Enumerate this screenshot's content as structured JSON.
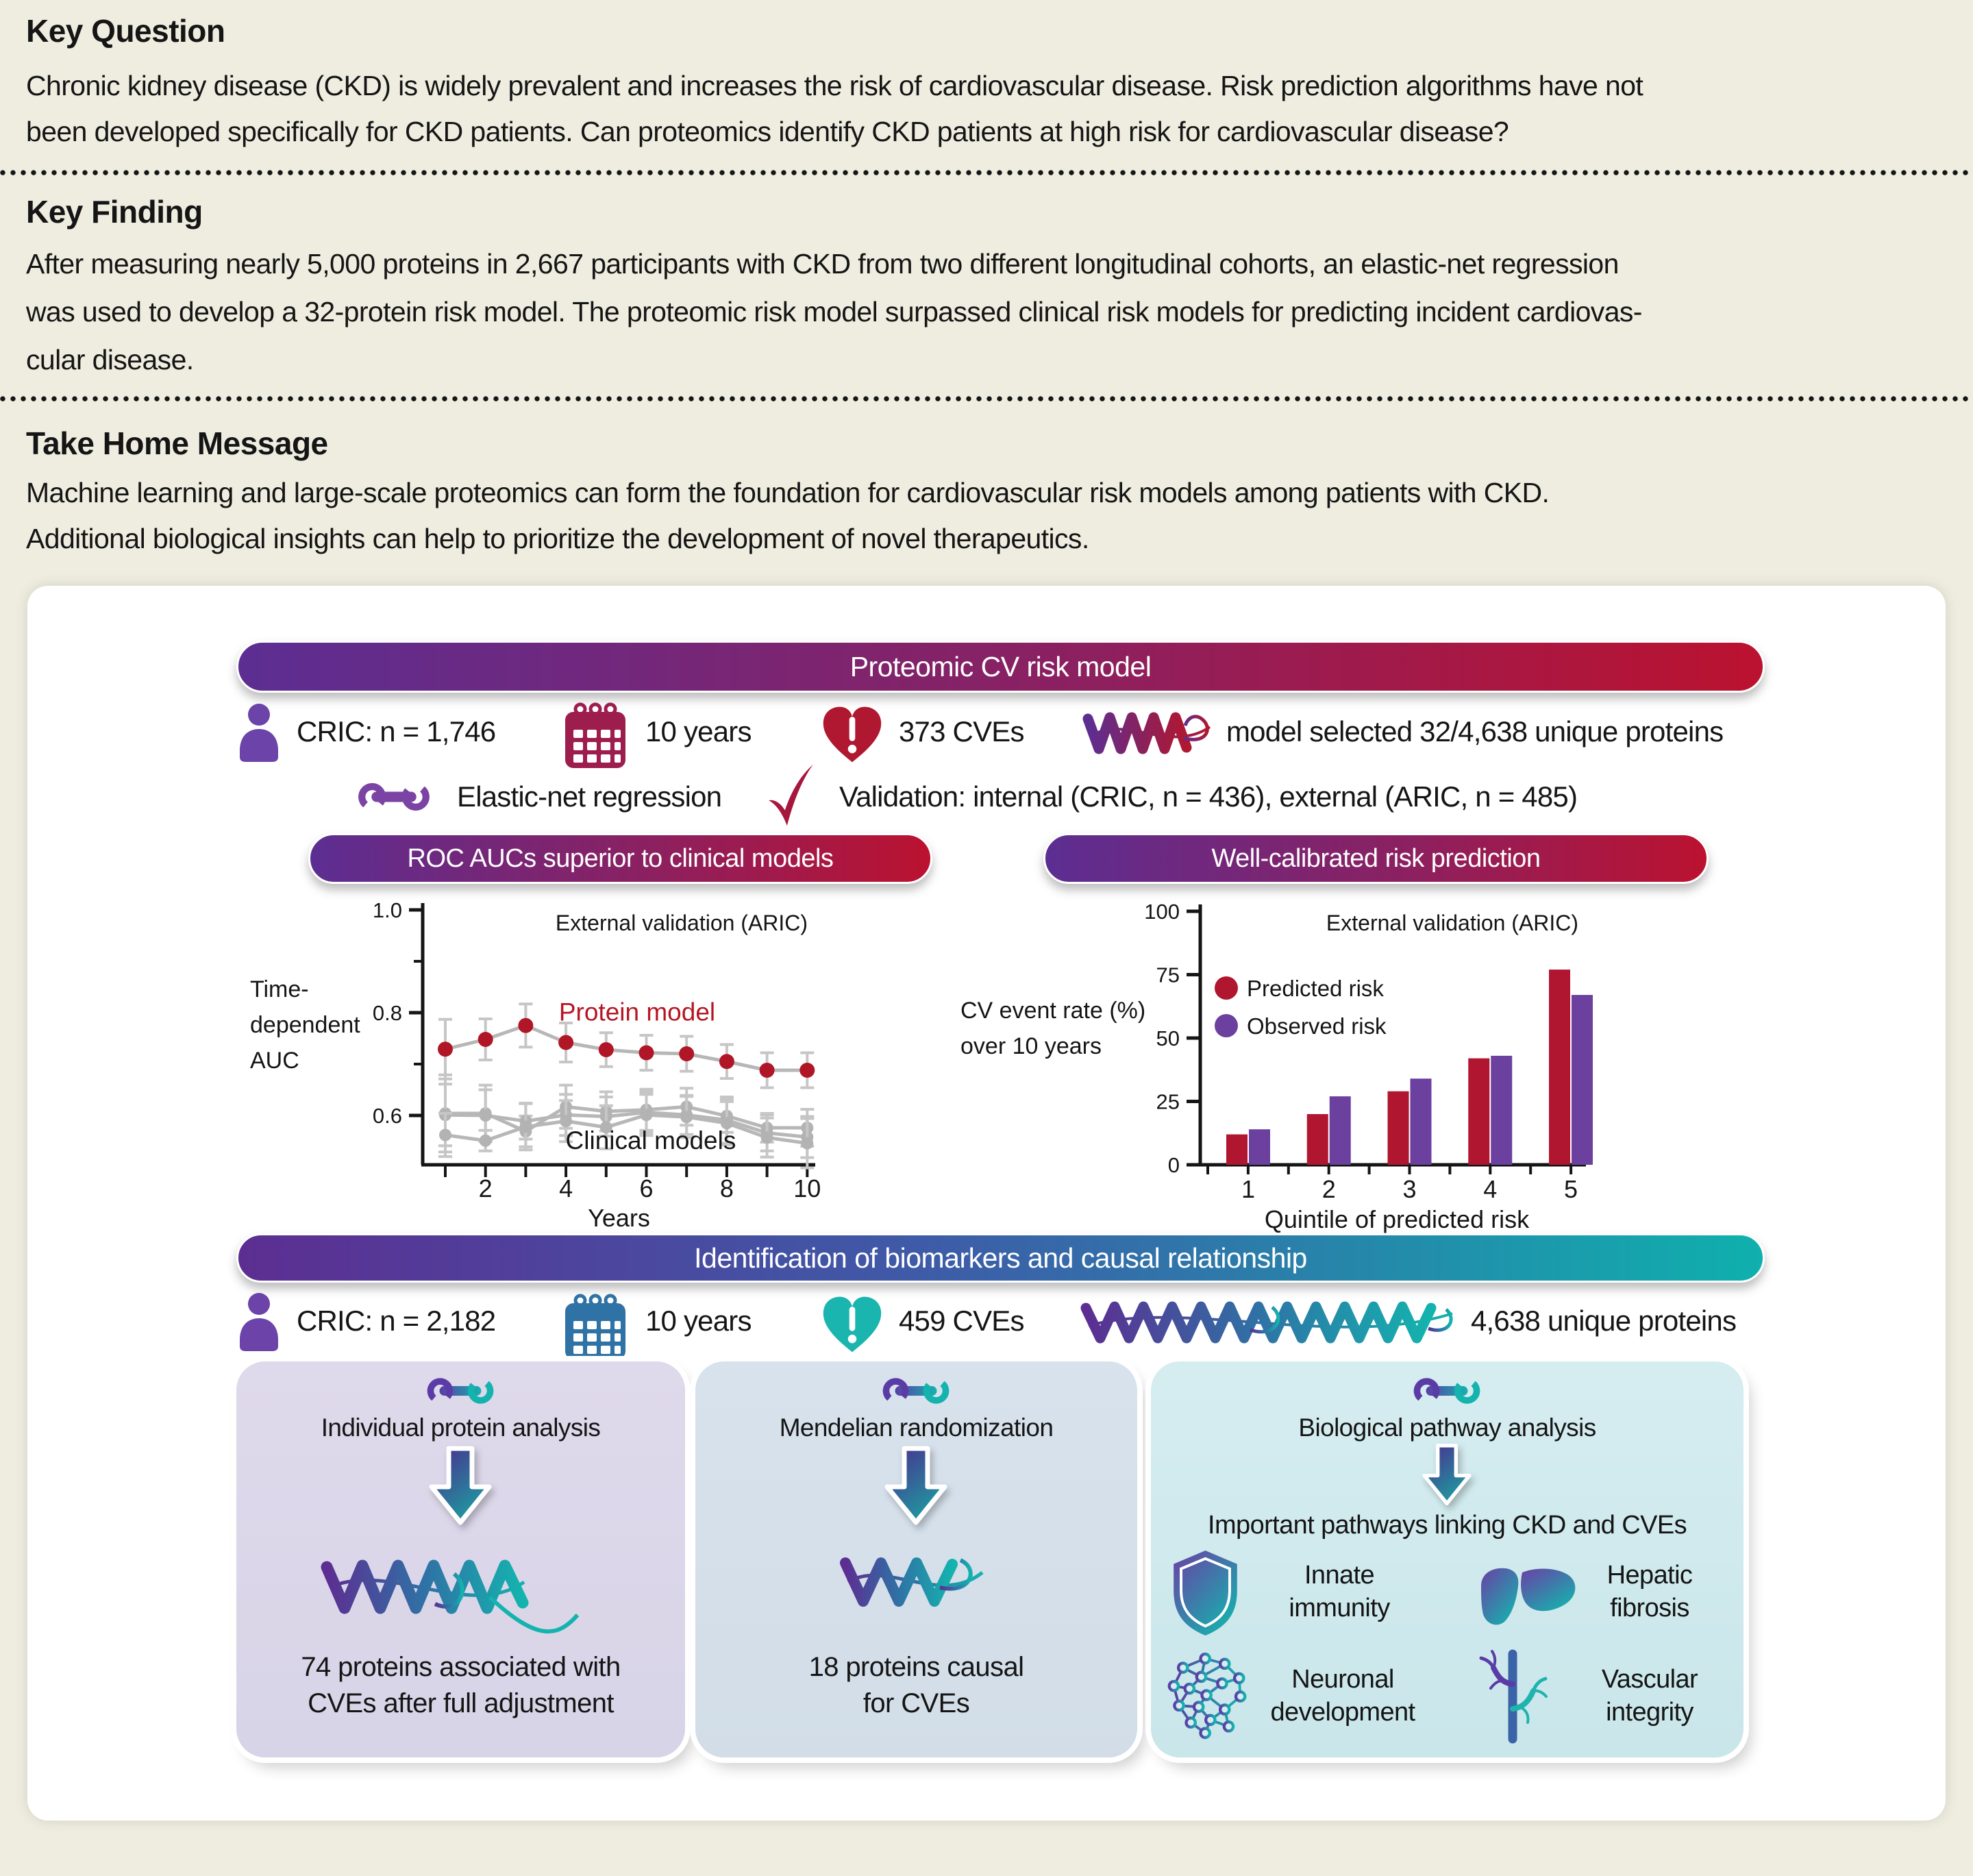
{
  "header": {
    "key_question": {
      "title": "Key Question",
      "body": "Chronic kidney disease (CKD) is widely prevalent and increases the risk of cardiovascular disease. Risk prediction algorithms have not\nbeen developed specifically for CKD patients. Can proteomics identify CKD patients at high risk for cardiovascular disease?"
    },
    "key_finding": {
      "title": "Key Finding",
      "body": "After measuring nearly 5,000 proteins in 2,667 participants with CKD from two different longitudinal cohorts, an elastic-net regression\nwas used to develop a 32-protein risk model. The proteomic risk model surpassed clinical risk models for predicting incident cardiovas-\ncular disease."
    },
    "take_home": {
      "title": "Take Home Message",
      "body": "Machine learning and large-scale proteomics can form the foundation for cardiovascular risk models among patients with CKD.\nAdditional biological insights can help to prioritize the development of novel therapeutics."
    }
  },
  "model_section": {
    "banner": "Proteomic CV risk model",
    "cohort": "CRIC: n = 1,746",
    "duration": "10 years",
    "events": "373 CVEs",
    "proteins": "model selected 32/4,638 unique proteins",
    "method": "Elastic-net regression",
    "validation": "Validation: internal (CRIC, n = 436), external (ARIC, n = 485)",
    "roc_banner": "ROC AUCs superior to clinical models",
    "cal_banner": "Well-calibrated risk prediction"
  },
  "biomarker_section": {
    "banner": "Identification of biomarkers and causal relationship",
    "cohort": "CRIC: n = 2,182",
    "duration": "10 years",
    "events": "459 CVEs",
    "proteins": "4,638 unique proteins",
    "panels": [
      {
        "tool": "Individual protein analysis",
        "result": "74 proteins associated with\nCVEs after full adjustment"
      },
      {
        "tool": "Mendelian randomization",
        "result": "18 proteins causal\nfor CVEs"
      },
      {
        "tool": "Biological pathway analysis",
        "subtitle": "Important pathways linking CKD and CVEs",
        "pathways": [
          {
            "icon": "shield-icon",
            "label": "Innate\nimmunity"
          },
          {
            "icon": "liver-icon",
            "label": "Hepatic\nfibrosis"
          },
          {
            "icon": "neuron-icon",
            "label": "Neuronal\ndevelopment"
          },
          {
            "icon": "vessel-icon",
            "label": "Vascular\nintegrity"
          }
        ]
      }
    ]
  },
  "chart_data": [
    {
      "type": "line",
      "title": "External validation (ARIC)",
      "xlabel": "Years",
      "ylabel": "Time-\ndependent\nAUC",
      "x": [
        1,
        2,
        3,
        4,
        5,
        6,
        7,
        8,
        9,
        10
      ],
      "x_tick_labels": [
        2,
        4,
        6,
        8,
        10
      ],
      "ylim": [
        0.504,
        1.0
      ],
      "yticks": [
        0.6,
        0.8,
        1.0
      ],
      "yticks_minor": [
        0.7,
        0.9
      ],
      "grid": false,
      "series": [
        {
          "name": "Clinical model 1",
          "line_color": "#b7b7b7",
          "marker_color": "#b3b3b3",
          "values": [
            0.604,
            0.604,
            0.569,
            0.617,
            0.608,
            0.611,
            0.617,
            0.599,
            0.576,
            0.576
          ],
          "err": [
            0.075,
            0.055,
            0.03,
            0.042,
            0.038,
            0.04,
            0.036,
            0.032,
            0.028,
            0.036
          ]
        },
        {
          "name": "Clinical model 2",
          "line_color": "#b7b7b7",
          "marker_color": "#b3b3b3",
          "values": [
            0.601,
            0.6,
            0.589,
            0.601,
            0.598,
            0.606,
            0.601,
            0.591,
            0.566,
            0.558
          ],
          "err": [
            0.06,
            0.05,
            0.035,
            0.04,
            0.038,
            0.04,
            0.038,
            0.045,
            0.035,
            0.04
          ]
        },
        {
          "name": "Clinical model 3",
          "line_color": "#b7b7b7",
          "marker_color": "#b3b3b3",
          "values": [
            0.562,
            0.551,
            0.578,
            0.589,
            0.577,
            0.601,
            0.597,
            0.585,
            0.557,
            0.546
          ],
          "err": [
            0.042,
            0.02,
            0.045,
            0.04,
            0.042,
            0.04,
            0.04,
            0.042,
            0.038,
            0.048
          ]
        },
        {
          "name": "Protein model",
          "line_color": "#b7b7b7",
          "marker_color": "#b01626",
          "values": [
            0.729,
            0.748,
            0.775,
            0.742,
            0.728,
            0.722,
            0.72,
            0.705,
            0.688,
            0.688
          ],
          "err": [
            0.058,
            0.04,
            0.042,
            0.038,
            0.033,
            0.034,
            0.034,
            0.033,
            0.034,
            0.034
          ]
        }
      ],
      "annotations": [
        {
          "text": "Protein model",
          "x": 5.77,
          "y": 0.785,
          "color": "#b41724"
        },
        {
          "text": "Clinical models",
          "x": 6.11,
          "y": 0.535,
          "color": "#151515"
        }
      ]
    },
    {
      "type": "bar",
      "title": "External validation (ARIC)",
      "xlabel": "Quintile of predicted risk",
      "ylabel": "CV event rate (%)\nover 10 years",
      "categories": [
        "1",
        "2",
        "3",
        "4",
        "5"
      ],
      "ylim": [
        0,
        100
      ],
      "yticks": [
        0,
        25,
        50,
        75,
        100
      ],
      "legend_position": "upper left",
      "series": [
        {
          "name": "Predicted risk",
          "color": "#b01630",
          "values": [
            12,
            20,
            29,
            42,
            77
          ]
        },
        {
          "name": "Observed risk",
          "color": "#6b409f",
          "values": [
            14,
            27,
            34,
            43,
            67
          ]
        }
      ]
    }
  ]
}
